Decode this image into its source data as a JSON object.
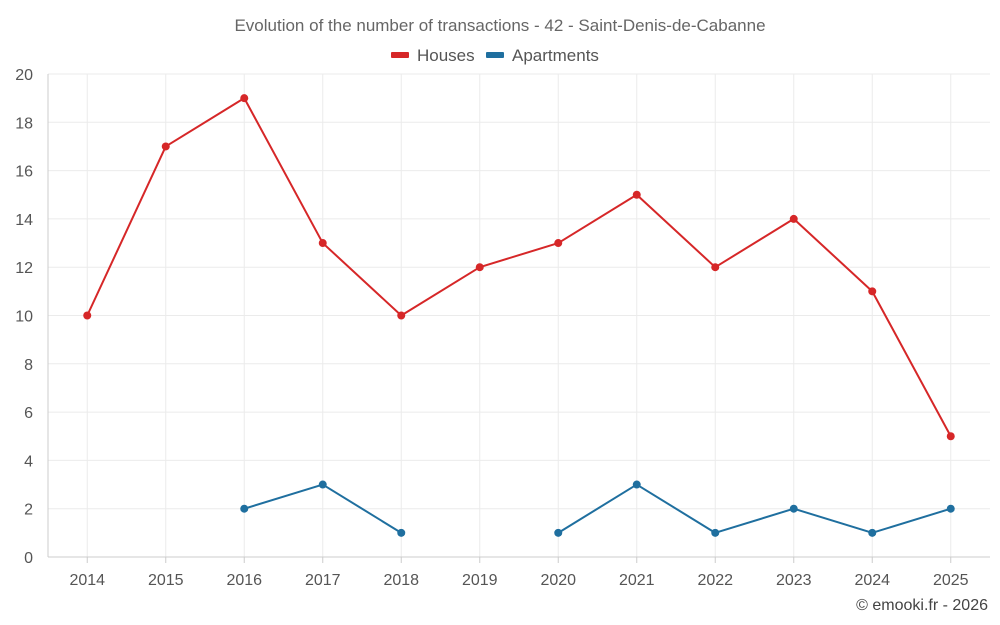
{
  "chart_data": {
    "type": "line",
    "title": "Evolution of the number of transactions - 42 - Saint-Denis-de-Cabanne",
    "categories": [
      "2014",
      "2015",
      "2016",
      "2017",
      "2018",
      "2019",
      "2020",
      "2021",
      "2022",
      "2023",
      "2024",
      "2025"
    ],
    "ylim": [
      0,
      20
    ],
    "yticks": [
      0,
      2,
      4,
      6,
      8,
      10,
      12,
      14,
      16,
      18,
      20
    ],
    "grid": true,
    "legend_position": "top-center",
    "xlabel": "",
    "ylabel": "",
    "series": [
      {
        "name": "Houses",
        "color": "#d62728",
        "values": [
          10,
          17,
          19,
          13,
          10,
          12,
          13,
          15,
          12,
          14,
          11,
          5
        ]
      },
      {
        "name": "Apartments",
        "color": "#1f6f9f",
        "values": [
          null,
          null,
          2,
          3,
          1,
          null,
          1,
          3,
          1,
          2,
          1,
          2
        ]
      }
    ]
  },
  "credit": "© emooki.fr - 2026"
}
